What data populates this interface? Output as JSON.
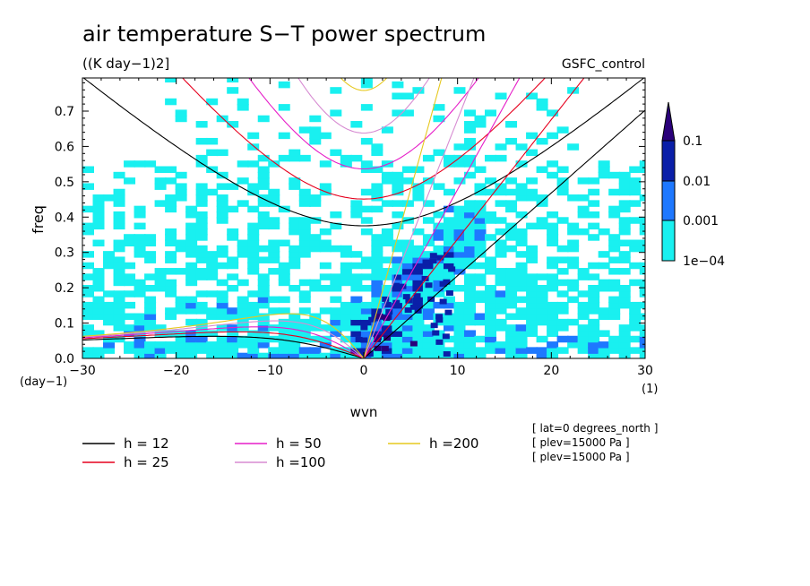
{
  "chart_data": {
    "type": "heatmap",
    "title": "air temperature S−T power spectrum",
    "units": "((K day−1)2]",
    "model": "GSFC_control",
    "xlabel": "wvn",
    "ylabel": "freq",
    "x_unit": "(1)",
    "y_unit": "(day−1)",
    "xlim": [
      -30,
      30
    ],
    "ylim": [
      0,
      0.8
    ],
    "x_ticks": [
      {
        "value": -30,
        "label": "−30"
      },
      {
        "value": -20,
        "label": "−20"
      },
      {
        "value": -10,
        "label": "−10"
      },
      {
        "value": 0,
        "label": "0"
      },
      {
        "value": 10,
        "label": "10"
      },
      {
        "value": 20,
        "label": "20"
      },
      {
        "value": 30,
        "label": "30"
      }
    ],
    "y_ticks": [
      {
        "value": 0.0,
        "label": "0.0"
      },
      {
        "value": 0.1,
        "label": "0.1"
      },
      {
        "value": 0.2,
        "label": "0.2"
      },
      {
        "value": 0.3,
        "label": "0.3"
      },
      {
        "value": 0.4,
        "label": "0.4"
      },
      {
        "value": 0.5,
        "label": "0.5"
      },
      {
        "value": 0.6,
        "label": "0.6"
      },
      {
        "value": 0.7,
        "label": "0.7"
      }
    ],
    "colorbar": {
      "levels": [
        {
          "value": 0.1,
          "label": "0.1",
          "color": "#2a007a"
        },
        {
          "value": 0.01,
          "label": "0.01",
          "color": "#0a1fa8"
        },
        {
          "value": 0.001,
          "label": "0.001",
          "color": "#1e78ff"
        },
        {
          "value": 0.0001,
          "label": "1e−04",
          "color": "#19f0f0"
        }
      ]
    },
    "dispersion_curves": [
      {
        "label": "h = 12",
        "h": 12,
        "color": "#000000"
      },
      {
        "label": "h = 25",
        "h": 25,
        "color": "#e6001e"
      },
      {
        "label": "h = 50",
        "h": 50,
        "color": "#e61ec8"
      },
      {
        "label": "h =100",
        "h": 100,
        "color": "#d78cd2"
      },
      {
        "label": "h =200",
        "h": 200,
        "color": "#e6c81e"
      }
    ],
    "annotations": [
      "[ lat=0 degrees_north ]",
      "[ plev=15000 Pa ]",
      "[ plev=15000 Pa ]"
    ]
  }
}
